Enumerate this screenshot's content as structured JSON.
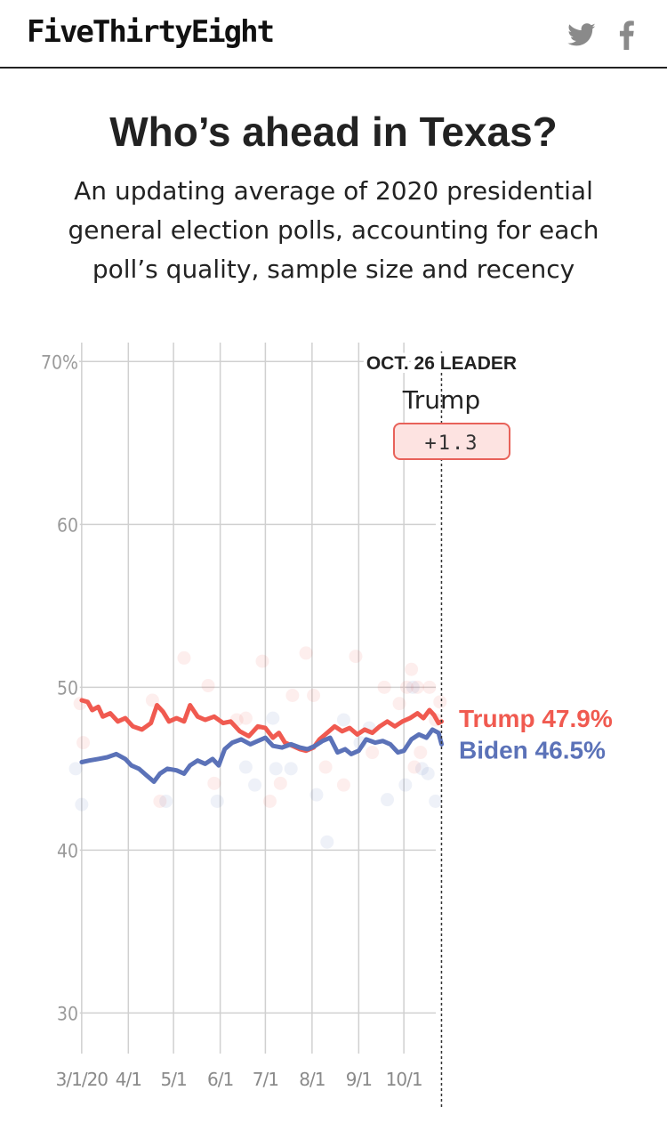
{
  "header": {
    "logo": "FiveThirtyEight",
    "social": [
      {
        "name": "twitter-icon",
        "label": "Twitter"
      },
      {
        "name": "facebook-icon",
        "label": "Facebook"
      }
    ]
  },
  "title": "Who’s ahead in Texas?",
  "subtitle": "An updating average of 2020 presidential general election polls, accounting for each poll’s quality, sample size and recency",
  "colors": {
    "trump": "#f05a50",
    "biden": "#5b72b8",
    "grid": "#d0d0d0",
    "badge_bg": "#fde3e1",
    "badge_border": "#e8625a"
  },
  "chart_data": {
    "type": "line",
    "x_domain": [
      "2020-02-23",
      "2020-11-03"
    ],
    "ylim": [
      28,
      71
    ],
    "y_ticks": [
      30,
      40,
      50,
      60,
      70
    ],
    "y_tick_labels": [
      "30",
      "40",
      "50",
      "60",
      "70%"
    ],
    "x_ticks": [
      {
        "date": "2020-03-01",
        "label": "3/1/20"
      },
      {
        "date": "2020-04-01",
        "label": "4/1"
      },
      {
        "date": "2020-05-01",
        "label": "5/1"
      },
      {
        "date": "2020-06-01",
        "label": "6/1"
      },
      {
        "date": "2020-07-01",
        "label": "7/1"
      },
      {
        "date": "2020-08-01",
        "label": "8/1"
      },
      {
        "date": "2020-09-01",
        "label": "9/1"
      },
      {
        "date": "2020-10-01",
        "label": "10/1"
      }
    ],
    "grid": true,
    "series": [
      {
        "name": "Trump",
        "color": "#f05a50",
        "end_label": "Trump 47.9%",
        "points": [
          [
            "2020-03-01",
            49.2
          ],
          [
            "2020-03-05",
            49.1
          ],
          [
            "2020-03-08",
            48.6
          ],
          [
            "2020-03-12",
            48.8
          ],
          [
            "2020-03-15",
            48.2
          ],
          [
            "2020-03-20",
            48.4
          ],
          [
            "2020-03-25",
            47.9
          ],
          [
            "2020-03-30",
            48.1
          ],
          [
            "2020-04-04",
            47.6
          ],
          [
            "2020-04-10",
            47.4
          ],
          [
            "2020-04-16",
            47.8
          ],
          [
            "2020-04-20",
            48.9
          ],
          [
            "2020-04-24",
            48.5
          ],
          [
            "2020-04-28",
            47.9
          ],
          [
            "2020-05-03",
            48.1
          ],
          [
            "2020-05-08",
            47.9
          ],
          [
            "2020-05-12",
            48.9
          ],
          [
            "2020-05-17",
            48.2
          ],
          [
            "2020-05-22",
            48.0
          ],
          [
            "2020-05-28",
            48.2
          ],
          [
            "2020-06-03",
            47.8
          ],
          [
            "2020-06-08",
            47.9
          ],
          [
            "2020-06-14",
            47.3
          ],
          [
            "2020-06-20",
            47.0
          ],
          [
            "2020-06-26",
            47.6
          ],
          [
            "2020-07-01",
            47.5
          ],
          [
            "2020-07-06",
            46.9
          ],
          [
            "2020-07-10",
            47.2
          ],
          [
            "2020-07-14",
            46.6
          ],
          [
            "2020-07-19",
            46.4
          ],
          [
            "2020-07-24",
            46.2
          ],
          [
            "2020-07-28",
            46.1
          ],
          [
            "2020-08-02",
            46.3
          ],
          [
            "2020-08-06",
            46.8
          ],
          [
            "2020-08-11",
            47.2
          ],
          [
            "2020-08-16",
            47.6
          ],
          [
            "2020-08-21",
            47.3
          ],
          [
            "2020-08-26",
            47.5
          ],
          [
            "2020-08-31",
            47.1
          ],
          [
            "2020-09-05",
            47.4
          ],
          [
            "2020-09-10",
            47.2
          ],
          [
            "2020-09-15",
            47.6
          ],
          [
            "2020-09-20",
            47.9
          ],
          [
            "2020-09-25",
            47.6
          ],
          [
            "2020-09-30",
            47.9
          ],
          [
            "2020-10-05",
            48.1
          ],
          [
            "2020-10-10",
            48.4
          ],
          [
            "2020-10-14",
            48.1
          ],
          [
            "2020-10-18",
            48.6
          ],
          [
            "2020-10-21",
            48.3
          ],
          [
            "2020-10-24",
            47.8
          ],
          [
            "2020-10-26",
            47.9
          ]
        ]
      },
      {
        "name": "Biden",
        "color": "#5b72b8",
        "end_label": "Biden 46.5%",
        "points": [
          [
            "2020-03-01",
            45.4
          ],
          [
            "2020-03-06",
            45.5
          ],
          [
            "2020-03-12",
            45.6
          ],
          [
            "2020-03-18",
            45.7
          ],
          [
            "2020-03-24",
            45.9
          ],
          [
            "2020-03-30",
            45.6
          ],
          [
            "2020-04-03",
            45.2
          ],
          [
            "2020-04-08",
            45.0
          ],
          [
            "2020-04-13",
            44.6
          ],
          [
            "2020-04-18",
            44.2
          ],
          [
            "2020-04-22",
            44.7
          ],
          [
            "2020-04-27",
            45.0
          ],
          [
            "2020-05-03",
            44.9
          ],
          [
            "2020-05-08",
            44.7
          ],
          [
            "2020-05-12",
            45.2
          ],
          [
            "2020-05-17",
            45.5
          ],
          [
            "2020-05-22",
            45.3
          ],
          [
            "2020-05-27",
            45.6
          ],
          [
            "2020-05-31",
            45.2
          ],
          [
            "2020-06-04",
            46.2
          ],
          [
            "2020-06-09",
            46.6
          ],
          [
            "2020-06-15",
            46.8
          ],
          [
            "2020-06-21",
            46.5
          ],
          [
            "2020-06-26",
            46.7
          ],
          [
            "2020-07-01",
            46.9
          ],
          [
            "2020-07-06",
            46.4
          ],
          [
            "2020-07-12",
            46.3
          ],
          [
            "2020-07-18",
            46.5
          ],
          [
            "2020-07-24",
            46.3
          ],
          [
            "2020-07-29",
            46.2
          ],
          [
            "2020-08-03",
            46.4
          ],
          [
            "2020-08-08",
            46.7
          ],
          [
            "2020-08-13",
            46.9
          ],
          [
            "2020-08-18",
            46.0
          ],
          [
            "2020-08-23",
            46.2
          ],
          [
            "2020-08-27",
            45.9
          ],
          [
            "2020-09-01",
            46.1
          ],
          [
            "2020-09-06",
            46.8
          ],
          [
            "2020-09-12",
            46.6
          ],
          [
            "2020-09-17",
            46.7
          ],
          [
            "2020-09-22",
            46.5
          ],
          [
            "2020-09-27",
            46.0
          ],
          [
            "2020-10-01",
            46.1
          ],
          [
            "2020-10-06",
            46.8
          ],
          [
            "2020-10-11",
            47.1
          ],
          [
            "2020-10-16",
            46.9
          ],
          [
            "2020-10-20",
            47.4
          ],
          [
            "2020-10-24",
            47.2
          ],
          [
            "2020-10-26",
            46.5
          ]
        ]
      }
    ],
    "polls": {
      "trump": [
        [
          "2020-02-29",
          49.0
        ],
        [
          "2020-03-02",
          46.6
        ],
        [
          "2020-04-17",
          49.2
        ],
        [
          "2020-04-22",
          43.0
        ],
        [
          "2020-05-08",
          51.8
        ],
        [
          "2020-05-24",
          50.1
        ],
        [
          "2020-05-28",
          44.1
        ],
        [
          "2020-06-12",
          48.0
        ],
        [
          "2020-06-18",
          48.1
        ],
        [
          "2020-06-29",
          51.6
        ],
        [
          "2020-07-04",
          43.0
        ],
        [
          "2020-07-11",
          44.1
        ],
        [
          "2020-07-19",
          49.5
        ],
        [
          "2020-07-28",
          52.1
        ],
        [
          "2020-08-02",
          49.5
        ],
        [
          "2020-08-10",
          45.1
        ],
        [
          "2020-08-22",
          44.0
        ],
        [
          "2020-08-30",
          51.9
        ],
        [
          "2020-09-10",
          46.0
        ],
        [
          "2020-09-18",
          50.0
        ],
        [
          "2020-09-28",
          49.0
        ],
        [
          "2020-10-03",
          50.0
        ],
        [
          "2020-10-06",
          51.1
        ],
        [
          "2020-10-08",
          45.1
        ],
        [
          "2020-10-10",
          50.0
        ],
        [
          "2020-10-12",
          46.0
        ],
        [
          "2020-10-18",
          50.0
        ],
        [
          "2020-10-22",
          48.0
        ],
        [
          "2020-10-25",
          49.1
        ]
      ],
      "biden": [
        [
          "2020-02-26",
          45.0
        ],
        [
          "2020-03-01",
          42.8
        ],
        [
          "2020-04-26",
          43.0
        ],
        [
          "2020-05-30",
          43.0
        ],
        [
          "2020-06-18",
          45.1
        ],
        [
          "2020-06-24",
          44.0
        ],
        [
          "2020-07-06",
          48.1
        ],
        [
          "2020-07-08",
          45.0
        ],
        [
          "2020-07-18",
          45.0
        ],
        [
          "2020-08-04",
          43.4
        ],
        [
          "2020-08-11",
          40.5
        ],
        [
          "2020-08-22",
          48.0
        ],
        [
          "2020-09-02",
          46.6
        ],
        [
          "2020-09-08",
          47.5
        ],
        [
          "2020-09-20",
          43.1
        ],
        [
          "2020-10-02",
          44.0
        ],
        [
          "2020-10-07",
          50.0
        ],
        [
          "2020-10-13",
          45.0
        ],
        [
          "2020-10-17",
          44.7
        ],
        [
          "2020-10-22",
          43.0
        ]
      ]
    },
    "marker": {
      "date": "2020-10-26",
      "heading": "OCT. 26 LEADER",
      "leader": "Trump",
      "margin": "+1.3"
    }
  }
}
